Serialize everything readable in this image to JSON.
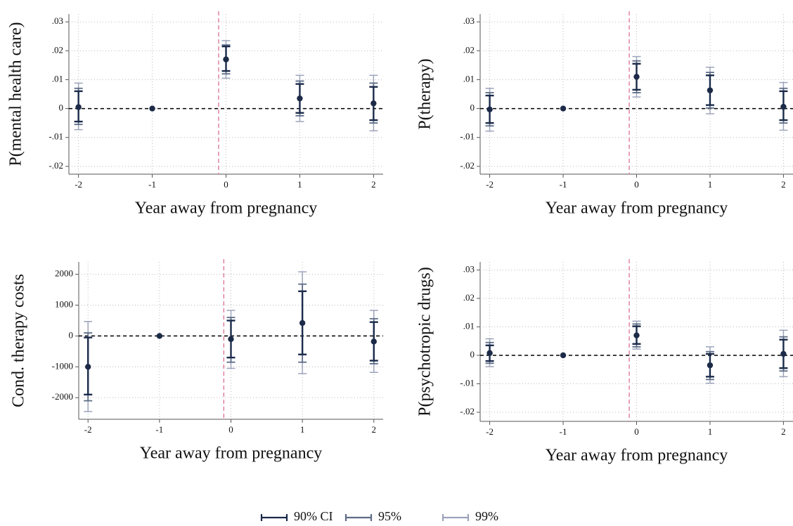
{
  "chart_data": [
    {
      "type": "errorbar",
      "ylabel": "P(mental health care)",
      "xlabel": "Year away from pregnancy",
      "color": "#1c2a48",
      "x": [
        -2,
        -1,
        0,
        1,
        2
      ],
      "values": [
        0.0005,
        0,
        0.017,
        0.0035,
        0.0018
      ],
      "ci": [
        {
          "lower": [
            -0.0045,
            null,
            0.013,
            -0.0015,
            -0.004
          ],
          "upper": [
            0.006,
            null,
            0.0215,
            0.0085,
            0.0075
          ]
        },
        {
          "lower": [
            -0.0055,
            null,
            0.012,
            -0.0025,
            -0.005
          ],
          "upper": [
            0.007,
            null,
            0.022,
            0.0095,
            0.0088
          ]
        },
        {
          "lower": [
            -0.0073,
            null,
            0.0105,
            -0.0045,
            -0.0077
          ],
          "upper": [
            0.0088,
            null,
            0.0235,
            0.0115,
            0.0115
          ]
        }
      ],
      "xlim": [
        -2.13,
        2.13
      ],
      "ylim": [
        -0.0227,
        0.0327
      ],
      "xticks": [
        -2,
        -1,
        0,
        1,
        2
      ],
      "yticks": [
        {
          "value": -0.02,
          "label": "-.02"
        },
        {
          "value": -0.01,
          "label": "-.01"
        },
        0,
        {
          "value": 0.01,
          "label": ".01"
        },
        {
          "value": 0.02,
          "label": ".02"
        },
        {
          "value": 0.03,
          "label": ".03"
        }
      ],
      "grid": true,
      "hline": 0,
      "vline": -0.1
    },
    {
      "type": "errorbar",
      "ylabel": "P(therapy)",
      "xlabel": "Year away from pregnancy",
      "color": "#1c2a48",
      "x": [
        -2,
        -1,
        0,
        1,
        2
      ],
      "values": [
        -0.0003,
        0,
        0.011,
        0.0063,
        0.0006
      ],
      "ci": [
        {
          "lower": [
            -0.005,
            null,
            0.0065,
            0.0012,
            -0.004
          ],
          "upper": [
            0.0045,
            null,
            0.0155,
            0.0115,
            0.006
          ]
        },
        {
          "lower": [
            -0.006,
            null,
            0.0055,
            0.0002,
            -0.005
          ],
          "upper": [
            0.0055,
            null,
            0.0165,
            0.0125,
            0.007
          ]
        },
        {
          "lower": [
            -0.0078,
            null,
            0.004,
            -0.0018,
            -0.0075
          ],
          "upper": [
            0.007,
            null,
            0.018,
            0.0143,
            0.009
          ]
        }
      ],
      "xlim": [
        -2.13,
        2.13
      ],
      "ylim": [
        -0.0227,
        0.0327
      ],
      "xticks": [
        -2,
        -1,
        0,
        1,
        2
      ],
      "yticks": [
        {
          "value": -0.02,
          "label": "-.02"
        },
        {
          "value": -0.01,
          "label": "-.01"
        },
        0,
        {
          "value": 0.01,
          "label": ".01"
        },
        {
          "value": 0.02,
          "label": ".02"
        },
        {
          "value": 0.03,
          "label": ".03"
        }
      ],
      "grid": true,
      "hline": 0,
      "vline": -0.1
    },
    {
      "type": "errorbar",
      "ylabel": "Cond. therapy costs",
      "xlabel": "Year away from pregnancy",
      "color": "#1c2a48",
      "x": [
        -2,
        -1,
        0,
        1,
        2
      ],
      "values": [
        -1000,
        0,
        -100,
        420,
        -180
      ],
      "ci": [
        {
          "lower": [
            -1900,
            null,
            -700,
            -600,
            -800
          ],
          "upper": [
            -50,
            null,
            500,
            1450,
            450
          ]
        },
        {
          "lower": [
            -2100,
            null,
            -850,
            -850,
            -900
          ],
          "upper": [
            100,
            null,
            600,
            1680,
            560
          ]
        },
        {
          "lower": [
            -2450,
            null,
            -1050,
            -1220,
            -1180
          ],
          "upper": [
            470,
            null,
            830,
            2080,
            830
          ]
        }
      ],
      "xlim": [
        -2.13,
        2.13
      ],
      "ylim": [
        -2700,
        2400
      ],
      "xticks": [
        -2,
        -1,
        0,
        1,
        2
      ],
      "yticks": [
        -2000,
        -1000,
        0,
        1000,
        2000
      ],
      "grid": true,
      "hline": 0,
      "vline": -0.1
    },
    {
      "type": "errorbar",
      "ylabel": "P(psychotropic drugs)",
      "xlabel": "Year away from pregnancy",
      "color": "#1c2a48",
      "x": [
        -2,
        -1,
        0,
        1,
        2
      ],
      "values": [
        0.0008,
        0,
        0.007,
        -0.0035,
        0.0005
      ],
      "ci": [
        {
          "lower": [
            -0.002,
            null,
            0.004,
            -0.0075,
            -0.0045
          ],
          "upper": [
            0.0035,
            null,
            0.0102,
            0.0005,
            0.0055
          ]
        },
        {
          "lower": [
            -0.0028,
            null,
            0.003,
            -0.0085,
            -0.0055
          ],
          "upper": [
            0.0045,
            null,
            0.011,
            0.0013,
            0.0065
          ]
        },
        {
          "lower": [
            -0.004,
            null,
            0.0022,
            -0.0098,
            -0.0075
          ],
          "upper": [
            0.0058,
            null,
            0.012,
            0.003,
            0.0088
          ]
        }
      ],
      "xlim": [
        -2.13,
        2.13
      ],
      "ylim": [
        -0.0232,
        0.0328
      ],
      "xticks": [
        -2,
        -1,
        0,
        1,
        2
      ],
      "yticks": [
        {
          "value": -0.02,
          "label": "-.02"
        },
        {
          "value": -0.01,
          "label": "-.01"
        },
        0,
        {
          "value": 0.01,
          "label": ".01"
        },
        {
          "value": 0.02,
          "label": ".02"
        },
        {
          "value": 0.03,
          "label": ".03"
        }
      ],
      "grid": true,
      "hline": 0,
      "vline": -0.1
    }
  ],
  "legend": {
    "position": "bottom",
    "series": [
      {
        "name": "90% CI",
        "color": "#1a2a4a"
      },
      {
        "name": "95%",
        "color": "#5d6c86"
      },
      {
        "name": "99%",
        "color": "#9ca4bb"
      }
    ]
  }
}
